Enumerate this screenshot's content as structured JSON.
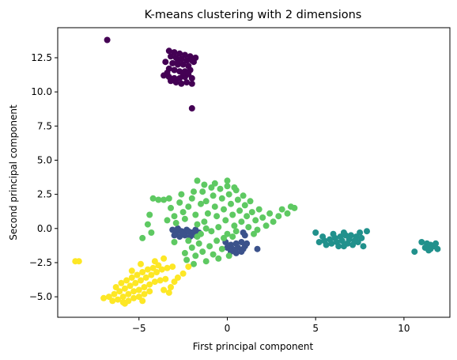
{
  "chart_data": {
    "type": "scatter",
    "title": "K-means clustering with 2 dimensions",
    "xlabel": "First principal component",
    "ylabel": "Second principal component",
    "xlim": [
      -9.6,
      12.6
    ],
    "ylim": [
      -6.5,
      14.7
    ],
    "xticks": [
      {
        "value": -5,
        "label": "−5"
      },
      {
        "value": 0,
        "label": "0"
      },
      {
        "value": 5,
        "label": "5"
      },
      {
        "value": 10,
        "label": "10"
      }
    ],
    "yticks": [
      {
        "value": -5,
        "label": "−5.0"
      },
      {
        "value": -2.5,
        "label": "−2.5"
      },
      {
        "value": 0,
        "label": "0.0"
      },
      {
        "value": 2.5,
        "label": "2.5"
      },
      {
        "value": 5,
        "label": "5.0"
      },
      {
        "value": 7.5,
        "label": "7.5"
      },
      {
        "value": 10,
        "label": "10.0"
      },
      {
        "value": 12.5,
        "label": "12.5"
      }
    ],
    "grid": false,
    "legend": "none",
    "marker_size": 4,
    "clusters": [
      {
        "color": "#440154",
        "points": [
          [
            -6.8,
            13.8
          ],
          [
            -2.0,
            8.8
          ],
          [
            -3.3,
            13.0
          ],
          [
            -3.0,
            12.9
          ],
          [
            -2.7,
            12.8
          ],
          [
            -2.4,
            12.7
          ],
          [
            -2.1,
            12.6
          ],
          [
            -1.8,
            12.5
          ],
          [
            -3.2,
            12.6
          ],
          [
            -2.9,
            12.5
          ],
          [
            -2.6,
            12.4
          ],
          [
            -2.3,
            12.3
          ],
          [
            -2.0,
            12.3
          ],
          [
            -3.5,
            12.2
          ],
          [
            -3.1,
            12.1
          ],
          [
            -2.8,
            12.0
          ],
          [
            -2.5,
            12.0
          ],
          [
            -2.2,
            11.9
          ],
          [
            -3.3,
            11.7
          ],
          [
            -3.0,
            11.6
          ],
          [
            -2.7,
            11.5
          ],
          [
            -2.4,
            11.5
          ],
          [
            -2.1,
            11.6
          ],
          [
            -3.6,
            11.2
          ],
          [
            -3.3,
            11.1
          ],
          [
            -3.0,
            11.0
          ],
          [
            -2.7,
            11.0
          ],
          [
            -2.4,
            11.1
          ],
          [
            -2.0,
            11.0
          ],
          [
            -3.2,
            10.8
          ],
          [
            -2.9,
            10.7
          ],
          [
            -2.6,
            10.6
          ],
          [
            -2.3,
            10.7
          ],
          [
            -2.0,
            10.6
          ],
          [
            -2.8,
            12.2
          ],
          [
            -2.5,
            11.3
          ],
          [
            -3.4,
            11.4
          ],
          [
            -2.2,
            11.3
          ],
          [
            -1.9,
            12.2
          ]
        ]
      },
      {
        "color": "#3b528b",
        "points": [
          [
            -3.1,
            -0.1
          ],
          [
            -2.9,
            -0.3
          ],
          [
            -2.6,
            -0.2
          ],
          [
            -2.3,
            -0.1
          ],
          [
            -2.0,
            -0.3
          ],
          [
            -1.8,
            -0.1
          ],
          [
            -3.0,
            -0.5
          ],
          [
            -2.7,
            -0.6
          ],
          [
            -2.4,
            -0.5
          ],
          [
            -2.1,
            -0.6
          ],
          [
            -1.8,
            -0.5
          ],
          [
            -2.8,
            0.0
          ],
          [
            -2.5,
            -0.4
          ],
          [
            -2.2,
            -0.2
          ],
          [
            -1.6,
            -0.3
          ],
          [
            -0.1,
            -1.0
          ],
          [
            0.2,
            -1.2
          ],
          [
            0.5,
            -1.1
          ],
          [
            0.8,
            -1.0
          ],
          [
            1.0,
            -1.3
          ],
          [
            0.0,
            -1.4
          ],
          [
            0.3,
            -1.5
          ],
          [
            0.6,
            -1.4
          ],
          [
            0.9,
            -1.5
          ],
          [
            1.1,
            -1.1
          ],
          [
            0.2,
            -1.7
          ],
          [
            0.5,
            -1.8
          ],
          [
            0.8,
            -1.7
          ],
          [
            1.7,
            -1.5
          ],
          [
            1.0,
            -0.5
          ],
          [
            0.9,
            -0.3
          ]
        ]
      },
      {
        "color": "#21918c",
        "points": [
          [
            5.0,
            -0.3
          ],
          [
            5.2,
            -1.0
          ],
          [
            5.5,
            -0.9
          ],
          [
            5.8,
            -0.8
          ],
          [
            6.1,
            -0.7
          ],
          [
            6.4,
            -0.6
          ],
          [
            6.7,
            -0.5
          ],
          [
            7.0,
            -0.5
          ],
          [
            7.3,
            -0.6
          ],
          [
            7.6,
            -0.7
          ],
          [
            5.6,
            -1.2
          ],
          [
            5.9,
            -1.1
          ],
          [
            6.2,
            -1.0
          ],
          [
            6.5,
            -0.9
          ],
          [
            6.8,
            -1.1
          ],
          [
            7.1,
            -1.2
          ],
          [
            7.4,
            -1.0
          ],
          [
            7.7,
            -1.3
          ],
          [
            6.3,
            -1.3
          ],
          [
            6.6,
            -1.3
          ],
          [
            6.9,
            -0.8
          ],
          [
            7.2,
            -0.9
          ],
          [
            6.0,
            -0.4
          ],
          [
            7.5,
            -0.3
          ],
          [
            7.9,
            -0.2
          ],
          [
            6.6,
            -0.3
          ],
          [
            5.4,
            -0.6
          ],
          [
            10.6,
            -1.7
          ],
          [
            11.0,
            -1.0
          ],
          [
            11.3,
            -1.1
          ],
          [
            11.5,
            -1.2
          ],
          [
            11.7,
            -1.3
          ],
          [
            11.9,
            -1.5
          ],
          [
            11.2,
            -1.4
          ],
          [
            11.5,
            -1.5
          ],
          [
            11.8,
            -1.1
          ],
          [
            11.4,
            -1.6
          ]
        ]
      },
      {
        "color": "#5ec962",
        "points": [
          [
            -4.8,
            -0.7
          ],
          [
            -4.5,
            0.3
          ],
          [
            -4.3,
            -0.3
          ],
          [
            -4.4,
            1.0
          ],
          [
            -3.6,
            2.1
          ],
          [
            -3.3,
            2.2
          ],
          [
            -3.4,
            0.6
          ],
          [
            -3.0,
            0.9
          ],
          [
            -3.2,
            1.5
          ],
          [
            -2.7,
            1.9
          ],
          [
            -2.5,
            1.2
          ],
          [
            -2.9,
            0.4
          ],
          [
            -2.2,
            1.6
          ],
          [
            -2.0,
            2.2
          ],
          [
            -1.8,
            1.0
          ],
          [
            -2.4,
            0.7
          ],
          [
            -1.7,
            0.3
          ],
          [
            -1.5,
            1.8
          ],
          [
            -1.4,
            2.7
          ],
          [
            -1.2,
            2.0
          ],
          [
            -1.1,
            1.1
          ],
          [
            -1.3,
            0.5
          ],
          [
            -0.9,
            3.0
          ],
          [
            -0.8,
            2.4
          ],
          [
            -0.7,
            1.6
          ],
          [
            -0.6,
            0.9
          ],
          [
            -0.5,
            0.1
          ],
          [
            -0.4,
            2.9
          ],
          [
            -0.3,
            2.2
          ],
          [
            -0.2,
            1.4
          ],
          [
            -0.1,
            0.6
          ],
          [
            0.0,
            3.1
          ],
          [
            0.1,
            2.5
          ],
          [
            0.2,
            1.8
          ],
          [
            0.3,
            1.0
          ],
          [
            0.4,
            0.2
          ],
          [
            0.5,
            2.8
          ],
          [
            0.6,
            2.1
          ],
          [
            0.7,
            1.3
          ],
          [
            0.8,
            0.5
          ],
          [
            0.9,
            2.4
          ],
          [
            1.0,
            1.7
          ],
          [
            1.1,
            0.9
          ],
          [
            1.2,
            0.1
          ],
          [
            1.3,
            2.0
          ],
          [
            1.4,
            1.2
          ],
          [
            1.6,
            0.6
          ],
          [
            1.8,
            1.4
          ],
          [
            2.0,
            0.8
          ],
          [
            2.2,
            0.2
          ],
          [
            2.4,
            1.1
          ],
          [
            2.6,
            0.5
          ],
          [
            2.9,
            0.9
          ],
          [
            3.1,
            1.4
          ],
          [
            3.4,
            1.1
          ],
          [
            3.6,
            1.6
          ],
          [
            3.8,
            1.5
          ],
          [
            0.0,
            3.5
          ],
          [
            -1.7,
            3.5
          ],
          [
            -1.3,
            3.2
          ],
          [
            -2.2,
            -0.9
          ],
          [
            -2.0,
            -1.4
          ],
          [
            -1.8,
            -2.0
          ],
          [
            -1.6,
            -1.1
          ],
          [
            -1.4,
            -1.7
          ],
          [
            -1.2,
            -2.4
          ],
          [
            -1.0,
            -1.3
          ],
          [
            -0.8,
            -1.9
          ],
          [
            -0.6,
            -0.9
          ],
          [
            -0.5,
            -2.2
          ],
          [
            -0.3,
            -1.5
          ],
          [
            -0.2,
            -0.7
          ],
          [
            0.0,
            -0.4
          ],
          [
            0.1,
            -2.0
          ],
          [
            0.3,
            -0.6
          ],
          [
            0.5,
            -0.2
          ],
          [
            -1.5,
            -0.4
          ],
          [
            -1.2,
            0.0
          ],
          [
            -0.9,
            -0.2
          ],
          [
            -2.4,
            -1.8
          ],
          [
            -2.3,
            -2.3
          ],
          [
            -1.9,
            -2.6
          ],
          [
            -1.7,
            -0.6
          ],
          [
            1.5,
            -0.4
          ],
          [
            1.7,
            -0.1
          ],
          [
            -0.7,
            3.3
          ],
          [
            0.4,
            3.0
          ],
          [
            -1.9,
            2.7
          ],
          [
            -2.6,
            2.5
          ],
          [
            -4.2,
            2.2
          ],
          [
            -3.9,
            2.1
          ],
          [
            -3.0,
            -1.0
          ]
        ]
      },
      {
        "color": "#fde725",
        "points": [
          [
            -8.6,
            -2.4
          ],
          [
            -8.4,
            -2.4
          ],
          [
            -7.0,
            -5.1
          ],
          [
            -6.7,
            -5.0
          ],
          [
            -6.4,
            -4.8
          ],
          [
            -6.1,
            -4.6
          ],
          [
            -5.8,
            -4.4
          ],
          [
            -5.5,
            -4.2
          ],
          [
            -5.2,
            -4.0
          ],
          [
            -4.9,
            -3.8
          ],
          [
            -4.6,
            -3.6
          ],
          [
            -4.3,
            -3.4
          ],
          [
            -4.0,
            -3.2
          ],
          [
            -3.7,
            -3.0
          ],
          [
            -3.4,
            -2.9
          ],
          [
            -3.1,
            -2.8
          ],
          [
            -6.5,
            -5.3
          ],
          [
            -6.2,
            -5.2
          ],
          [
            -5.9,
            -5.0
          ],
          [
            -5.6,
            -4.8
          ],
          [
            -5.3,
            -4.6
          ],
          [
            -5.0,
            -4.5
          ],
          [
            -4.7,
            -4.3
          ],
          [
            -4.4,
            -4.1
          ],
          [
            -4.1,
            -3.9
          ],
          [
            -3.8,
            -3.8
          ],
          [
            -3.5,
            -3.7
          ],
          [
            -6.0,
            -4.0
          ],
          [
            -5.7,
            -3.8
          ],
          [
            -5.4,
            -3.6
          ],
          [
            -5.1,
            -3.4
          ],
          [
            -4.8,
            -3.2
          ],
          [
            -4.5,
            -3.0
          ],
          [
            -4.2,
            -2.9
          ],
          [
            -3.9,
            -2.7
          ],
          [
            -5.9,
            -5.4
          ],
          [
            -5.6,
            -5.3
          ],
          [
            -5.3,
            -5.1
          ],
          [
            -5.0,
            -5.0
          ],
          [
            -4.7,
            -4.8
          ],
          [
            -4.4,
            -4.6
          ],
          [
            -3.2,
            -4.3
          ],
          [
            -3.0,
            -3.9
          ],
          [
            -2.8,
            -3.6
          ],
          [
            -2.5,
            -3.3
          ],
          [
            -2.2,
            -2.8
          ],
          [
            -4.1,
            -2.4
          ],
          [
            -3.6,
            -2.2
          ],
          [
            -5.4,
            -3.1
          ],
          [
            -4.9,
            -2.6
          ],
          [
            -3.3,
            -4.7
          ],
          [
            -3.6,
            -4.5
          ],
          [
            -6.3,
            -4.3
          ],
          [
            -5.8,
            -5.5
          ],
          [
            -4.8,
            -5.3
          ]
        ]
      }
    ]
  }
}
